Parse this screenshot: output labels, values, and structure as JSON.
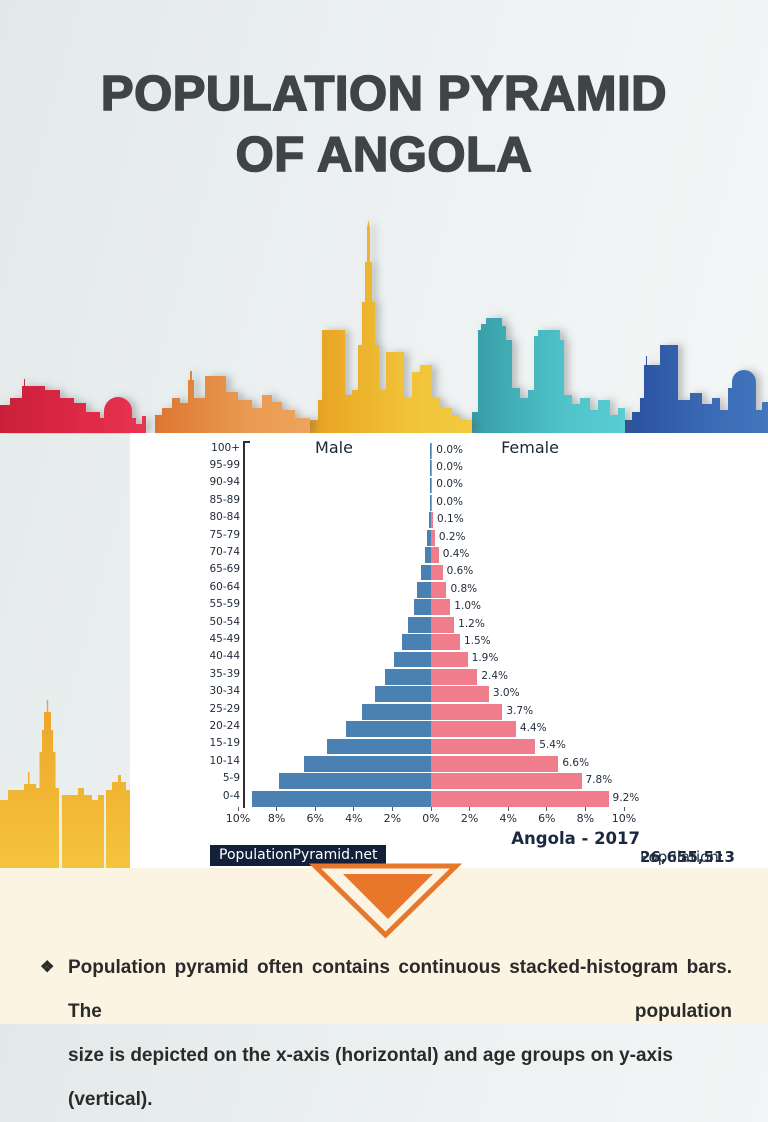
{
  "slide": {
    "title_line1": "POPULATION PYRAMID",
    "title_line2": "OF ANGOLA"
  },
  "chart_data": {
    "type": "bar",
    "subtype": "population_pyramid",
    "title": "Angola - 2017",
    "population_label": "Population: ",
    "population_value": "26,655,513",
    "source": "PopulationPyramid.net",
    "left_series_label": "Male",
    "right_series_label": "Female",
    "age_groups": [
      "100+",
      "95-99",
      "90-94",
      "85-89",
      "80-84",
      "75-79",
      "70-74",
      "65-69",
      "60-64",
      "55-59",
      "50-54",
      "45-49",
      "40-44",
      "35-39",
      "30-34",
      "25-29",
      "20-24",
      "15-19",
      "10-14",
      "5-9",
      "0-4"
    ],
    "series": [
      {
        "name": "Male",
        "color": "#4a80b2",
        "values_pct": [
          0.0,
          0.0,
          0.0,
          0.0,
          0.1,
          0.2,
          0.3,
          0.5,
          0.7,
          0.9,
          1.2,
          1.5,
          1.9,
          2.4,
          2.9,
          3.6,
          4.4,
          5.4,
          6.6,
          7.9,
          9.3
        ]
      },
      {
        "name": "Female",
        "color": "#ef7d8c",
        "values_pct": [
          0.0,
          0.0,
          0.0,
          0.0,
          0.1,
          0.2,
          0.4,
          0.6,
          0.8,
          1.0,
          1.2,
          1.5,
          1.9,
          2.4,
          3.0,
          3.7,
          4.4,
          5.4,
          6.6,
          7.8,
          9.2
        ]
      }
    ],
    "x_axis_tick_labels": [
      "10%",
      "8%",
      "6%",
      "4%",
      "2%",
      "0%",
      "2%",
      "4%",
      "6%",
      "8%",
      "10%"
    ],
    "x_range_pct": [
      -10,
      10
    ],
    "value_label_format": "0.0%",
    "legend_position": "top",
    "grid": false
  },
  "footer": {
    "bullet": "❖",
    "line1": "Population pyramid often contains continuous stacked-histogram bars. The population",
    "line2": "size is depicted on the x-axis (horizontal) and age groups on y-axis (vertical)."
  },
  "colors": {
    "male_bar": "#4a80b2",
    "female_bar": "#ef7d8c",
    "navy_text": "#1a2940",
    "source_box_bg": "#141f39",
    "arrow_orange": "#e8772b",
    "footer_bg": "#fbf4e3",
    "title_text": "#3f4447",
    "skyline_red": "#d92442",
    "skyline_orange": "#e58a3e",
    "skyline_yellow": "#eeb62f",
    "skyline_teal": "#45b4bc",
    "skyline_blue": "#3260aa"
  }
}
